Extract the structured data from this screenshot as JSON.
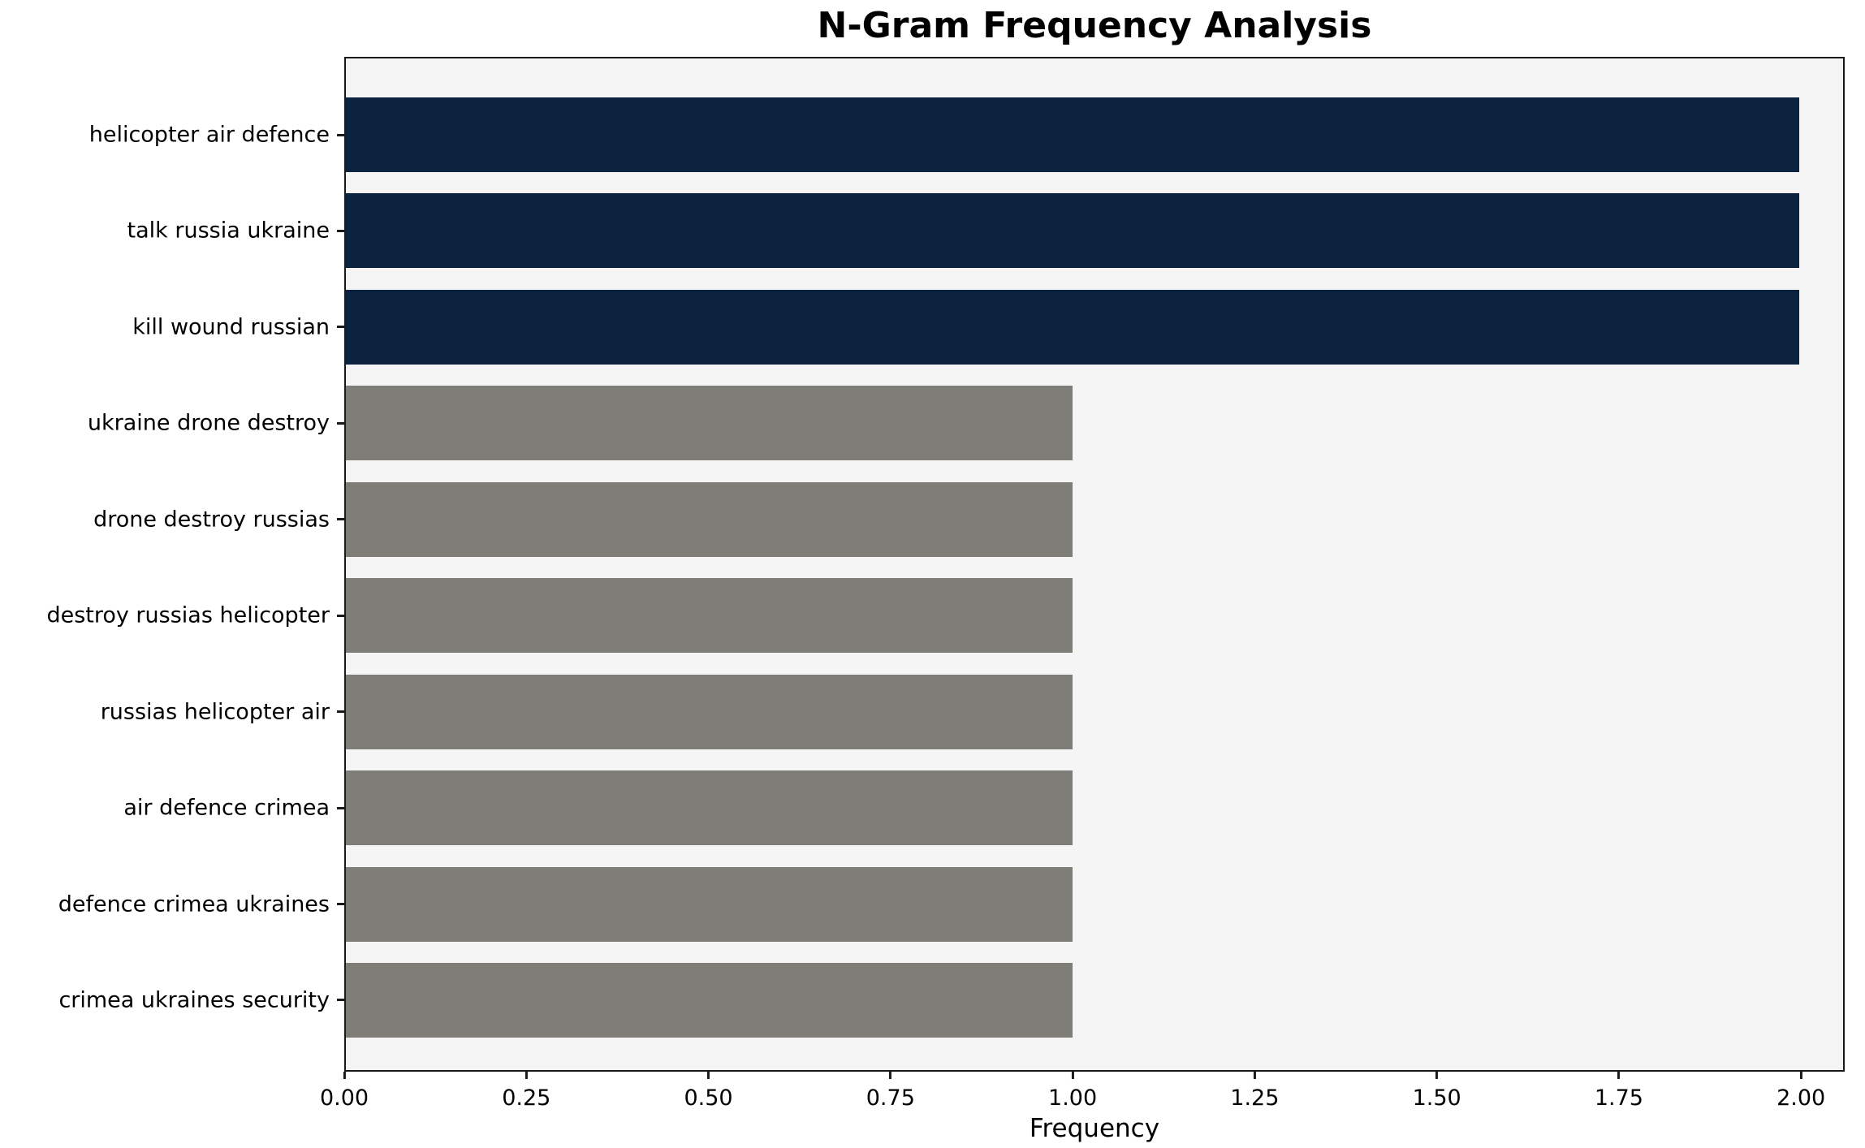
{
  "chart_data": {
    "type": "bar",
    "orientation": "horizontal",
    "title": "N-Gram Frequency Analysis",
    "xlabel": "Frequency",
    "ylabel": "",
    "categories": [
      "helicopter air defence",
      "talk russia ukraine",
      "kill wound russian",
      "ukraine drone destroy",
      "drone destroy russias",
      "destroy russias helicopter",
      "russias helicopter air",
      "air defence crimea",
      "defence crimea ukraines",
      "crimea ukraines security"
    ],
    "values": [
      2,
      2,
      2,
      1,
      1,
      1,
      1,
      1,
      1,
      1
    ],
    "bar_colors": [
      "#0c2340",
      "#0c2340",
      "#0c2340",
      "#7f7d78",
      "#7f7d78",
      "#7f7d78",
      "#7f7d78",
      "#7f7d78",
      "#7f7d78",
      "#7f7d78"
    ],
    "xlim": [
      0,
      2.06
    ],
    "x_ticks": [
      "0.00",
      "0.25",
      "0.50",
      "0.75",
      "1.00",
      "1.25",
      "1.50",
      "1.75",
      "2.00"
    ],
    "x_tick_values": [
      0,
      0.25,
      0.5,
      0.75,
      1.0,
      1.25,
      1.5,
      1.75,
      2.0
    ],
    "plot_background": "#f5f5f5",
    "grid": false,
    "legend_position": "none"
  }
}
